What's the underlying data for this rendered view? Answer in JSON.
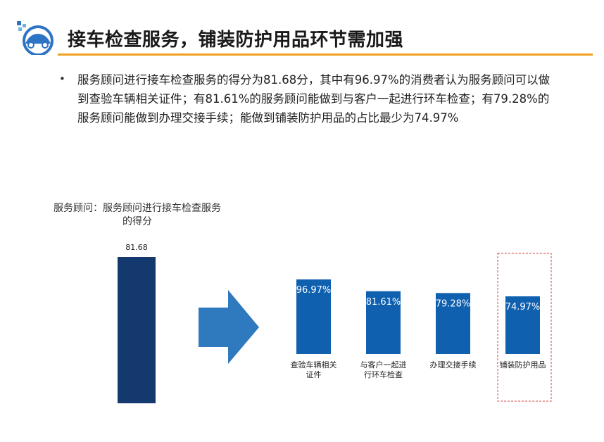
{
  "header": {
    "title": "接车检查服务，铺装防护用品环节需加强"
  },
  "colors": {
    "title_underline": "#f0a020",
    "score_bar": "#14396e",
    "item_bars": "#1060b0",
    "arrow": "#2f79bf",
    "highlight_box": "#d94040"
  },
  "summary": {
    "bullet": "服务顾问进行接车检查服务的得分为81.68分，其中有96.97%的消费者认为服务顾问可以做到查验车辆相关证件；有81.61%的服务顾问能做到与客户一起进行环车检查；有79.28%的服务顾问能做到办理交接手续；能做到铺装防护用品的占比最少为74.97%"
  },
  "chart_data": [
    {
      "type": "bar",
      "title": "服务顾问：服务顾问进行接车检查服务的得分",
      "categories": [
        ""
      ],
      "values": [
        81.68
      ],
      "data_labels": [
        "81.68"
      ]
    },
    {
      "type": "bar",
      "categories": [
        "查验车辆相关证件",
        "与客户一起进行环车检查",
        "办理交接手续",
        "铺装防护用品"
      ],
      "category_label_lines": [
        [
          "查验车辆相关",
          "证件"
        ],
        [
          "与客户一起进",
          "行环车检查"
        ],
        [
          "办理交接手续"
        ],
        [
          "铺装防护用品"
        ]
      ],
      "values": [
        96.97,
        81.61,
        79.28,
        74.97
      ],
      "data_labels": [
        "96.97%",
        "81.61%",
        "79.28%",
        "74.97%"
      ],
      "unit": "%",
      "highlighted_category": "铺装防护用品"
    }
  ]
}
